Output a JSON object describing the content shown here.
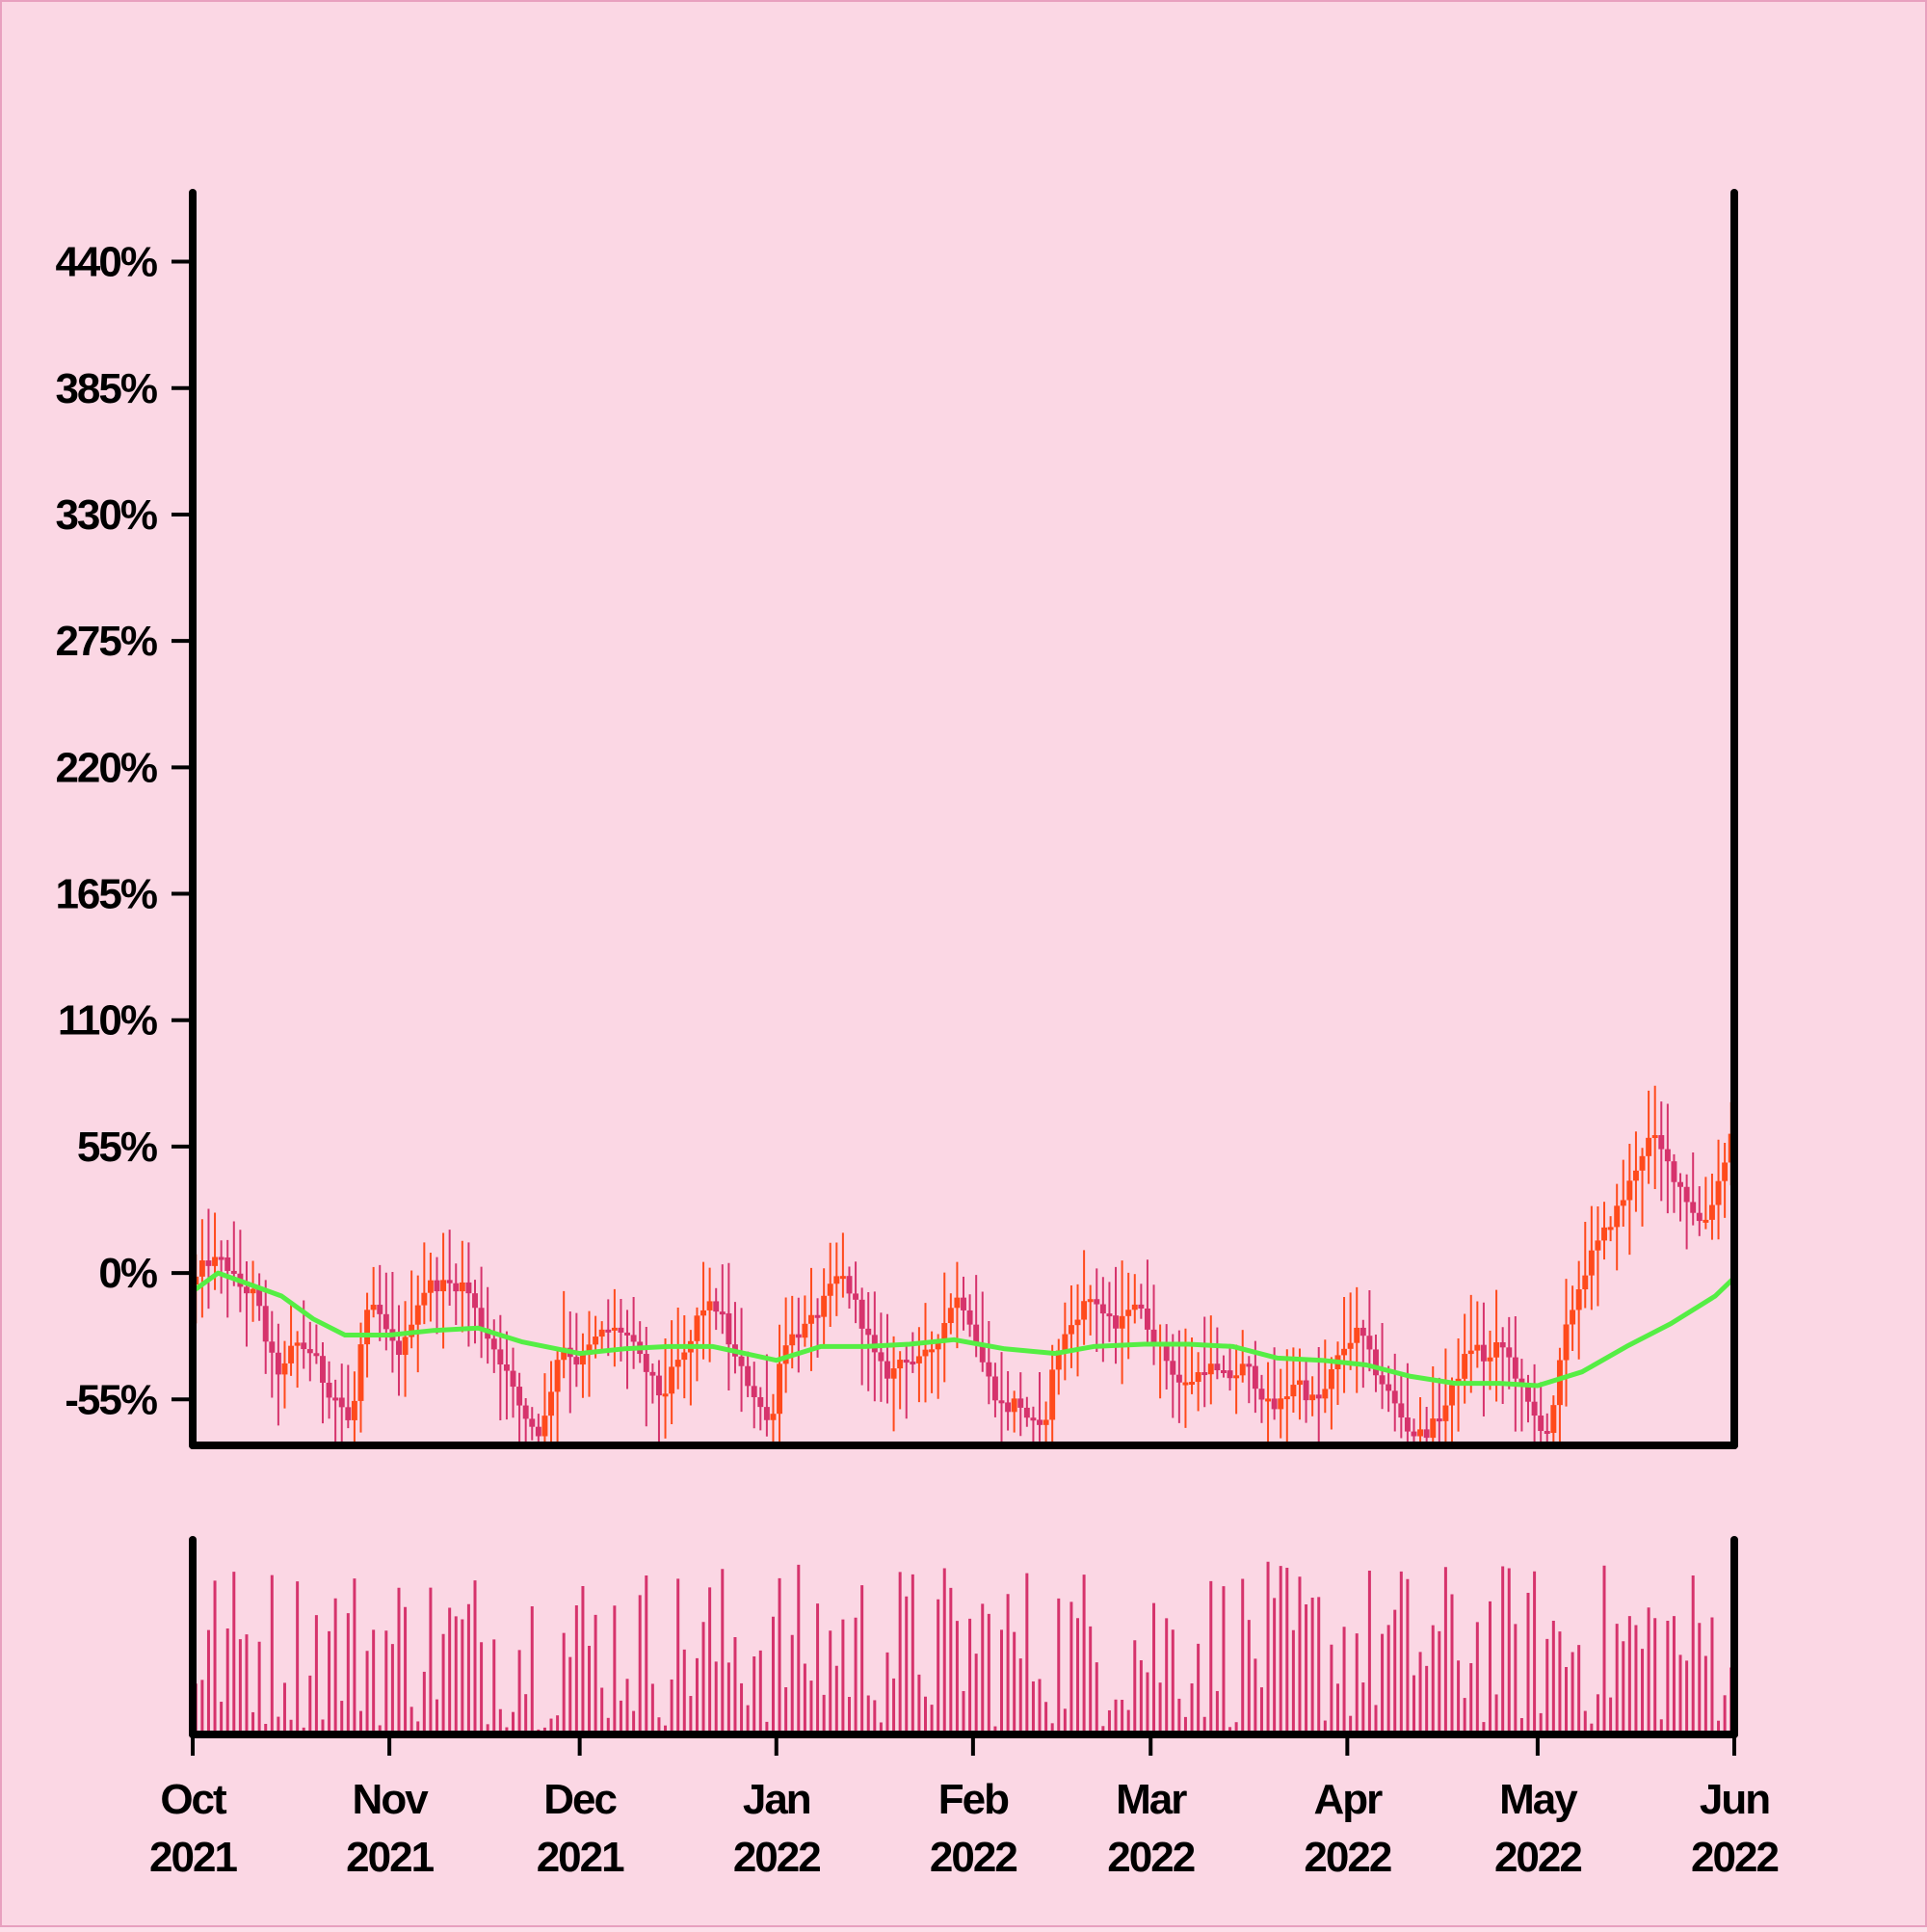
{
  "chart_data": {
    "type": "candlestick",
    "title": "",
    "xlabel": "",
    "ylabel": "",
    "x_range": [
      "2021-10-01",
      "2022-06-01"
    ],
    "ylim": [
      -75,
      470
    ],
    "y_ticks": [
      {
        "value": -55,
        "label": "-55%"
      },
      {
        "value": 0,
        "label": "0%"
      },
      {
        "value": 55,
        "label": "55%"
      },
      {
        "value": 110,
        "label": "110%"
      },
      {
        "value": 165,
        "label": "165%"
      },
      {
        "value": 220,
        "label": "220%"
      },
      {
        "value": 275,
        "label": "275%"
      },
      {
        "value": 330,
        "label": "330%"
      },
      {
        "value": 385,
        "label": "385%"
      },
      {
        "value": 440,
        "label": "440%"
      }
    ],
    "x_ticks": [
      {
        "date": "2021-10-01",
        "month": "Oct",
        "year": "2021"
      },
      {
        "date": "2021-11-01",
        "month": "Nov",
        "year": "2021"
      },
      {
        "date": "2021-12-01",
        "month": "Dec",
        "year": "2021"
      },
      {
        "date": "2022-01-01",
        "month": "Jan",
        "year": "2022"
      },
      {
        "date": "2022-02-01",
        "month": "Feb",
        "year": "2022"
      },
      {
        "date": "2022-03-01",
        "month": "Mar",
        "year": "2022"
      },
      {
        "date": "2022-04-01",
        "month": "Apr",
        "year": "2022"
      },
      {
        "date": "2022-05-01",
        "month": "May",
        "year": "2022"
      },
      {
        "date": "2022-06-01",
        "month": "Jun",
        "year": "2022"
      }
    ],
    "close_path": [
      [
        "2021-10-01",
        -5
      ],
      [
        "2021-10-03",
        5
      ],
      [
        "2021-10-06",
        5
      ],
      [
        "2021-10-08",
        -5
      ],
      [
        "2021-10-11",
        -10
      ],
      [
        "2021-10-13",
        -35
      ],
      [
        "2021-10-15",
        -45
      ],
      [
        "2021-10-17",
        -30
      ],
      [
        "2021-10-20",
        -35
      ],
      [
        "2021-10-22",
        -50
      ],
      [
        "2021-10-24",
        -55
      ],
      [
        "2021-10-26",
        -68
      ],
      [
        "2021-10-28",
        -20
      ],
      [
        "2021-10-30",
        -15
      ],
      [
        "2021-11-01",
        -30
      ],
      [
        "2021-11-03",
        -35
      ],
      [
        "2021-11-05",
        -15
      ],
      [
        "2021-11-07",
        -5
      ],
      [
        "2021-11-10",
        -5
      ],
      [
        "2021-11-13",
        -5
      ],
      [
        "2021-11-15",
        -20
      ],
      [
        "2021-11-17",
        -30
      ],
      [
        "2021-11-19",
        -40
      ],
      [
        "2021-11-21",
        -55
      ],
      [
        "2021-11-23",
        -65
      ],
      [
        "2021-11-25",
        -70
      ],
      [
        "2021-11-28",
        -30
      ],
      [
        "2021-12-01",
        -40
      ],
      [
        "2021-12-03",
        -30
      ],
      [
        "2021-12-05",
        -25
      ],
      [
        "2021-12-08",
        -25
      ],
      [
        "2021-12-10",
        -35
      ],
      [
        "2021-12-12",
        -45
      ],
      [
        "2021-12-14",
        -55
      ],
      [
        "2021-12-16",
        -40
      ],
      [
        "2021-12-18",
        -35
      ],
      [
        "2021-12-20",
        -15
      ],
      [
        "2021-12-23",
        -15
      ],
      [
        "2021-12-25",
        -35
      ],
      [
        "2021-12-27",
        -45
      ],
      [
        "2021-12-29",
        -55
      ],
      [
        "2021-12-31",
        -68
      ],
      [
        "2022-01-02",
        -30
      ],
      [
        "2022-01-05",
        -25
      ],
      [
        "2022-01-07",
        -20
      ],
      [
        "2022-01-09",
        -10
      ],
      [
        "2022-01-11",
        0
      ],
      [
        "2022-01-13",
        -10
      ],
      [
        "2022-01-15",
        -25
      ],
      [
        "2022-01-17",
        -40
      ],
      [
        "2022-01-19",
        -45
      ],
      [
        "2022-01-21",
        -35
      ],
      [
        "2022-01-23",
        -40
      ],
      [
        "2022-01-25",
        -35
      ],
      [
        "2022-01-27",
        -25
      ],
      [
        "2022-01-29",
        -10
      ],
      [
        "2022-01-31",
        -15
      ],
      [
        "2022-02-02",
        -35
      ],
      [
        "2022-02-04",
        -50
      ],
      [
        "2022-02-06",
        -60
      ],
      [
        "2022-02-08",
        -55
      ],
      [
        "2022-02-10",
        -65
      ],
      [
        "2022-02-12",
        -70
      ],
      [
        "2022-02-14",
        -35
      ],
      [
        "2022-02-16",
        -25
      ],
      [
        "2022-02-18",
        -15
      ],
      [
        "2022-02-20",
        -10
      ],
      [
        "2022-02-22",
        -20
      ],
      [
        "2022-02-24",
        -25
      ],
      [
        "2022-02-26",
        -10
      ],
      [
        "2022-02-28",
        -20
      ],
      [
        "2022-03-02",
        -30
      ],
      [
        "2022-03-04",
        -40
      ],
      [
        "2022-03-06",
        -50
      ],
      [
        "2022-03-08",
        -45
      ],
      [
        "2022-03-10",
        -40
      ],
      [
        "2022-03-12",
        -45
      ],
      [
        "2022-03-14",
        -45
      ],
      [
        "2022-03-16",
        -40
      ],
      [
        "2022-03-18",
        -50
      ],
      [
        "2022-03-20",
        -60
      ],
      [
        "2022-03-22",
        -55
      ],
      [
        "2022-03-24",
        -45
      ],
      [
        "2022-03-26",
        -55
      ],
      [
        "2022-03-28",
        -55
      ],
      [
        "2022-03-30",
        -40
      ],
      [
        "2022-04-01",
        -30
      ],
      [
        "2022-04-03",
        -25
      ],
      [
        "2022-04-05",
        -40
      ],
      [
        "2022-04-07",
        -50
      ],
      [
        "2022-04-09",
        -60
      ],
      [
        "2022-04-11",
        -70
      ],
      [
        "2022-04-13",
        -70
      ],
      [
        "2022-04-15",
        -65
      ],
      [
        "2022-04-17",
        -55
      ],
      [
        "2022-04-19",
        -40
      ],
      [
        "2022-04-21",
        -30
      ],
      [
        "2022-04-23",
        -40
      ],
      [
        "2022-04-25",
        -30
      ],
      [
        "2022-04-27",
        -40
      ],
      [
        "2022-04-29",
        -55
      ],
      [
        "2022-05-01",
        -65
      ],
      [
        "2022-05-03",
        -70
      ],
      [
        "2022-05-05",
        -30
      ],
      [
        "2022-05-07",
        -10
      ],
      [
        "2022-05-09",
        5
      ],
      [
        "2022-05-11",
        15
      ],
      [
        "2022-05-13",
        25
      ],
      [
        "2022-05-15",
        35
      ],
      [
        "2022-05-17",
        50
      ],
      [
        "2022-05-19",
        60
      ],
      [
        "2022-05-21",
        50
      ],
      [
        "2022-05-23",
        40
      ],
      [
        "2022-05-25",
        30
      ],
      [
        "2022-05-27",
        20
      ],
      [
        "2022-05-29",
        35
      ],
      [
        "2022-05-31",
        55
      ],
      [
        "2022-06-01",
        65
      ]
    ],
    "series": [
      {
        "type": "line",
        "points": [
          [
            "2021-10-01",
            -8
          ],
          [
            "2021-10-05",
            0
          ],
          [
            "2021-10-10",
            -5
          ],
          [
            "2021-10-15",
            -10
          ],
          [
            "2021-10-20",
            -20
          ],
          [
            "2021-10-25",
            -27
          ],
          [
            "2021-11-01",
            -27
          ],
          [
            "2021-11-08",
            -25
          ],
          [
            "2021-11-15",
            -24
          ],
          [
            "2021-11-22",
            -30
          ],
          [
            "2021-12-01",
            -35
          ],
          [
            "2021-12-08",
            -33
          ],
          [
            "2021-12-15",
            -32
          ],
          [
            "2021-12-22",
            -32
          ],
          [
            "2022-01-01",
            -38
          ],
          [
            "2022-01-08",
            -32
          ],
          [
            "2022-01-15",
            -32
          ],
          [
            "2022-01-22",
            -31
          ],
          [
            "2022-01-29",
            -29
          ],
          [
            "2022-02-06",
            -33
          ],
          [
            "2022-02-14",
            -35
          ],
          [
            "2022-02-20",
            -32
          ],
          [
            "2022-02-28",
            -31
          ],
          [
            "2022-03-07",
            -31
          ],
          [
            "2022-03-14",
            -32
          ],
          [
            "2022-03-21",
            -37
          ],
          [
            "2022-03-28",
            -38
          ],
          [
            "2022-04-04",
            -40
          ],
          [
            "2022-04-11",
            -45
          ],
          [
            "2022-04-18",
            -48
          ],
          [
            "2022-04-25",
            -48
          ],
          [
            "2022-05-01",
            -49
          ],
          [
            "2022-05-08",
            -43
          ],
          [
            "2022-05-15",
            -32
          ],
          [
            "2022-05-22",
            -22
          ],
          [
            "2022-05-29",
            -10
          ],
          [
            "2022-06-01",
            -2
          ]
        ]
      }
    ],
    "colors": {
      "background": "#fbd7e4",
      "candle_up": "#ff4a1c",
      "candle_down": "#d6336c",
      "moving_average": "#55ee44",
      "volume": "#d6336c",
      "axis": "#000000"
    },
    "grid": false,
    "legend": "none",
    "volume_panel": true
  }
}
